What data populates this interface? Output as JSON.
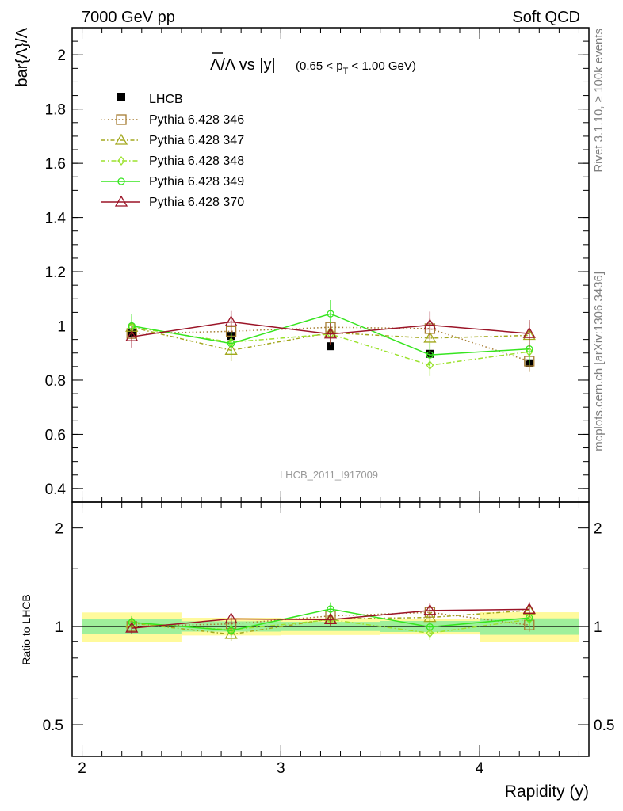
{
  "header": {
    "left": "7000 GeV pp",
    "right": "Soft QCD"
  },
  "side": {
    "rivet": "Rivet 3.1.10, ≥ 100k events",
    "mcplots": "mcplots.cern.ch [arXiv:1306.3436]"
  },
  "watermark": "LHCB_2011_I917009",
  "chart_data": {
    "type": "line",
    "title_main": "Λ/Λ vs |y|",
    "title_range_a": "(0.65 < p",
    "title_range_sub": "T",
    "title_range_b": " < 1.00 GeV)",
    "ylabel": "bar{Λ}/Λ",
    "xlabel": "Rapidity (y)",
    "ratio_ylabel": "Ratio to LHCB",
    "xlim": [
      1.95,
      4.55
    ],
    "ylim": [
      0.35,
      2.1
    ],
    "ratio_ylim": [
      0.4,
      2.4
    ],
    "ratio_scale": "log",
    "x_ticks": [
      "2",
      "3",
      "4"
    ],
    "y_ticks": [
      "0.4",
      "0.6",
      "0.8",
      "1",
      "1.2",
      "1.4",
      "1.6",
      "1.8",
      "2"
    ],
    "ratio_ticks": [
      "0.5",
      "1",
      "2"
    ],
    "legend_position": "top-left",
    "bins": [
      [
        2.0,
        2.5
      ],
      [
        2.5,
        3.0
      ],
      [
        3.0,
        3.5
      ],
      [
        3.5,
        4.0
      ],
      [
        4.0,
        4.5
      ]
    ],
    "x": [
      2.25,
      2.75,
      3.25,
      3.75,
      4.25
    ],
    "data": {
      "name": "LHCB",
      "values": [
        0.972,
        0.963,
        0.925,
        0.897,
        0.862
      ],
      "band_inner": [
        0.05,
        0.035,
        0.03,
        0.035,
        0.05
      ],
      "band_outer": [
        0.1,
        0.06,
        0.055,
        0.05,
        0.09
      ]
    },
    "series": [
      {
        "name": "Pythia 6.428 346",
        "color": "#a67c32",
        "marker": "square",
        "values": [
          0.972,
          0.98,
          0.995,
          0.99,
          0.87
        ],
        "errors": [
          0.03,
          0.03,
          0.03,
          0.04,
          0.04
        ]
      },
      {
        "name": "Pythia 6.428 347",
        "color": "#a3a81e",
        "marker": "triangle",
        "values": [
          0.995,
          0.91,
          0.975,
          0.955,
          0.965
        ],
        "errors": [
          0.04,
          0.04,
          0.04,
          0.04,
          0.05
        ]
      },
      {
        "name": "Pythia 6.428 348",
        "color": "#9be22d",
        "marker": "diamond",
        "values": [
          0.995,
          0.94,
          0.97,
          0.855,
          0.905
        ],
        "errors": [
          0.04,
          0.04,
          0.04,
          0.04,
          0.05
        ]
      },
      {
        "name": "Pythia 6.428 349",
        "color": "#36e51f",
        "marker": "circle",
        "values": [
          1.0,
          0.935,
          1.045,
          0.893,
          0.915
        ],
        "errors": [
          0.045,
          0.04,
          0.05,
          0.045,
          0.05
        ]
      },
      {
        "name": "Pythia 6.428 370",
        "color": "#9b1427",
        "marker": "triangle",
        "values": [
          0.96,
          1.015,
          0.97,
          1.003,
          0.972
        ],
        "errors": [
          0.04,
          0.04,
          0.04,
          0.05,
          0.05
        ]
      }
    ]
  }
}
